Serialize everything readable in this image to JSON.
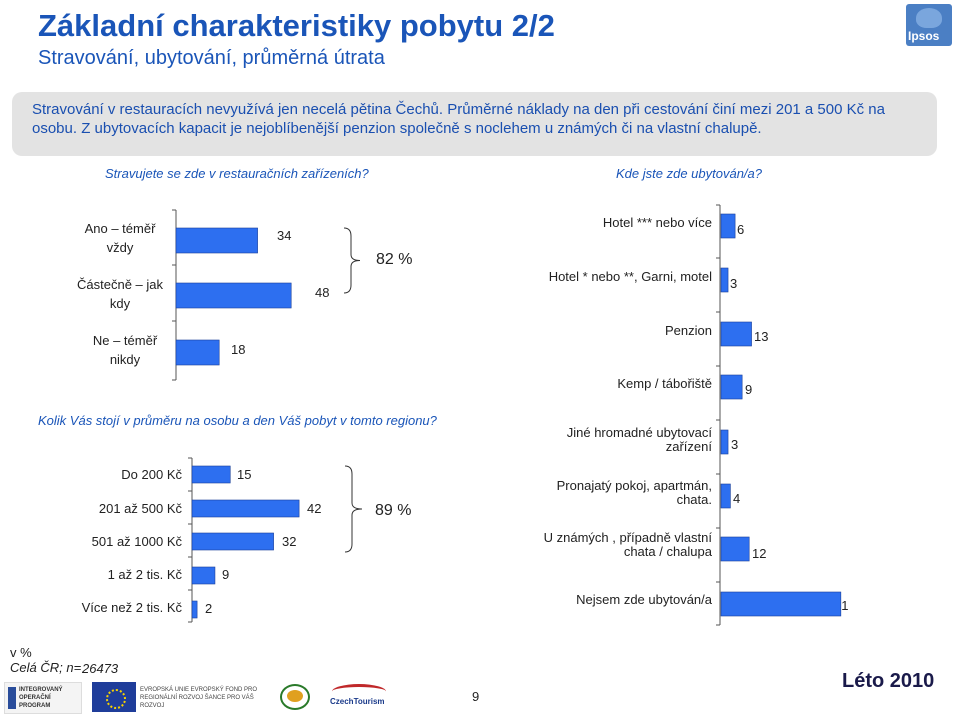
{
  "header": {
    "title": "Základní charakteristiky pobytu 2/2",
    "subtitle": "Stravování, ubytování, průměrná útrata",
    "logo_text": "Ipsos"
  },
  "summary": "Stravování v restauracích nevyužívá jen necelá pětina Čechů. Průměrné náklady na den při cestování činí mezi 201 a 500 Kč na osobu. Z ubytovacích kapacit je nejoblíbenější penzion společně s noclehem u známých či na vlastní chalupě.",
  "chart_data": [
    {
      "type": "bar",
      "orientation": "horizontal",
      "title": "Stravujete se zde v restauračních zařízeních?",
      "categories": [
        "Ano – téměř vždy",
        "Částečně – jak kdy",
        "Ne – téměř nikdy"
      ],
      "values": [
        34,
        48,
        18
      ],
      "bracket_label": "82 %",
      "xlim": [
        0,
        100
      ]
    },
    {
      "type": "bar",
      "orientation": "horizontal",
      "title": "Kolik Vás stojí v průměru na osobu a den Váš pobyt v tomto regionu?",
      "categories": [
        "Do 200 Kč",
        "201 až 500 Kč",
        "501 až 1000 Kč",
        "1 až 2 tis. Kč",
        "Více než 2 tis. Kč"
      ],
      "values": [
        15,
        42,
        32,
        9,
        2
      ],
      "bracket_label": "89 %",
      "xlim": [
        0,
        100
      ]
    },
    {
      "type": "bar",
      "orientation": "horizontal",
      "title": "Kde jste zde ubytován/a?",
      "categories": [
        "Hotel *** nebo více",
        "Hotel * nebo **, Garni, motel",
        "Penzion",
        "Kemp / tábořiště",
        "Jiné hromadné ubytovací zařízení",
        "Pronajatý pokoj, apartmán, chata.",
        "U známých , případně vlastní chata / chalupa",
        "Nejsem zde ubytován/a"
      ],
      "values": [
        6,
        3,
        13,
        9,
        3,
        4,
        12,
        51
      ],
      "xlim": [
        0,
        100
      ]
    }
  ],
  "footer": {
    "unit": "v %",
    "sample_label": "Celá ČR; n=",
    "sample_n": "26473",
    "page_number": "9",
    "season": "Léto 2010",
    "logos": [
      "INTEGROVANÝ OPERAČNÍ PROGRAM",
      "EVROPSKÁ UNIE EVROPSKÝ FOND PRO REGIONÁLNÍ ROZVOJ ŠANCE PRO VÁŠ ROZVOJ",
      "CzechTourism"
    ]
  },
  "colors": {
    "bar": "#2d6ff0",
    "title": "#1a55b8",
    "summary_bg": "#e3e3e3"
  }
}
